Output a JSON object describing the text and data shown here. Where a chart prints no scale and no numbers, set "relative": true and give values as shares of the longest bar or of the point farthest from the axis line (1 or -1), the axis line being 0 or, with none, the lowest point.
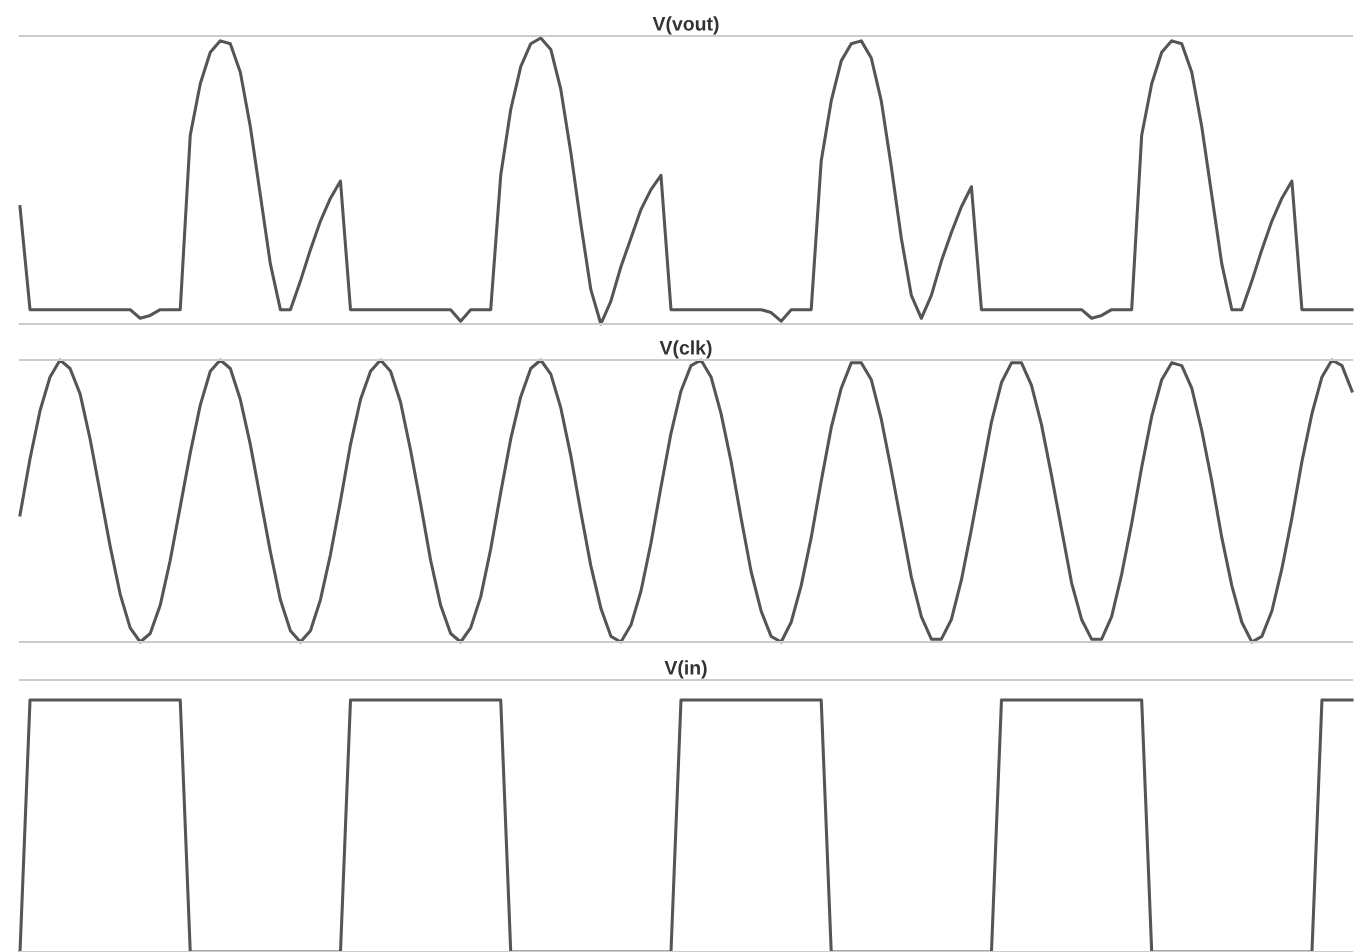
{
  "chart_data": [
    {
      "type": "line",
      "title": "V(vout)",
      "relative": true,
      "tick_labels": false,
      "categories": [
        null,
        null,
        null,
        null,
        null,
        null,
        null,
        null,
        null,
        null,
        null,
        null,
        null,
        null,
        null,
        null,
        null,
        null,
        null,
        null,
        null,
        null,
        null,
        null,
        null,
        null,
        null,
        null,
        null,
        null,
        null,
        null,
        null,
        null,
        null,
        null,
        null,
        null,
        null,
        null,
        null,
        null,
        null,
        null,
        null,
        null,
        null,
        null,
        null,
        null,
        null,
        null,
        null,
        null,
        null,
        null,
        null,
        null,
        null,
        null,
        null,
        null,
        null,
        null,
        null,
        null,
        null,
        null,
        null,
        null,
        null,
        null,
        null,
        null,
        null,
        null,
        null,
        null,
        null,
        null,
        null,
        null,
        null,
        null,
        null,
        null,
        null,
        null,
        null,
        null,
        null,
        null,
        null,
        null,
        null,
        null,
        null,
        null,
        null,
        null,
        null,
        null,
        null,
        null,
        null,
        null,
        null,
        null,
        null,
        null,
        null,
        null,
        null,
        null,
        null,
        null,
        null,
        null,
        null,
        null,
        null,
        null,
        null,
        null,
        null,
        null,
        null,
        null,
        null,
        null,
        null,
        null,
        null,
        null
      ],
      "series": [
        {
          "color": "#555555",
          "values": [
            0.41,
            0.05,
            0.05,
            0.05,
            0.05,
            0.05,
            0.05,
            0.05,
            0.05,
            0.05,
            0.05,
            0.05,
            0.02,
            0.03,
            0.05,
            0.05,
            0.05,
            0.66,
            0.84,
            0.95,
            0.99,
            0.98,
            0.88,
            0.69,
            0.45,
            0.21,
            0.05,
            0.05,
            0.15,
            0.26,
            0.36,
            0.44,
            0.5,
            0.05,
            0.05,
            0.05,
            0.05,
            0.05,
            0.05,
            0.05,
            0.05,
            0.05,
            0.05,
            0.05,
            0.01,
            0.05,
            0.05,
            0.05,
            0.52,
            0.75,
            0.9,
            0.98,
            1,
            0.96,
            0.82,
            0.6,
            0.35,
            0.12,
            0,
            0.08,
            0.2,
            0.3,
            0.4,
            0.47,
            0.52,
            0.05,
            0.05,
            0.05,
            0.05,
            0.05,
            0.05,
            0.05,
            0.05,
            0.05,
            0.05,
            0.04,
            0.01,
            0.05,
            0.05,
            0.05,
            0.57,
            0.78,
            0.92,
            0.98,
            0.99,
            0.93,
            0.78,
            0.55,
            0.3,
            0.1,
            0.02,
            0.1,
            0.22,
            0.32,
            0.41,
            0.48,
            0.05,
            0.05,
            0.05,
            0.05,
            0.05,
            0.05,
            0.05,
            0.05,
            0.05,
            0.05,
            0.05,
            0.02,
            0.03,
            0.05,
            0.05,
            0.05,
            0.66,
            0.84,
            0.95,
            0.99,
            0.98,
            0.88,
            0.69,
            0.45,
            0.21,
            0.05,
            0.05,
            0.15,
            0.26,
            0.36,
            0.44,
            0.5,
            0.05,
            0.05,
            0.05,
            0.05,
            0.05,
            0.05
          ]
        }
      ]
    },
    {
      "type": "line",
      "title": "V(clk)",
      "relative": true,
      "tick_labels": false,
      "categories": [
        null,
        null,
        null,
        null,
        null,
        null,
        null,
        null,
        null,
        null,
        null,
        null,
        null,
        null,
        null,
        null,
        null,
        null,
        null,
        null,
        null,
        null,
        null,
        null,
        null,
        null,
        null,
        null,
        null,
        null,
        null,
        null,
        null,
        null,
        null,
        null,
        null,
        null,
        null,
        null,
        null,
        null,
        null,
        null,
        null,
        null,
        null,
        null,
        null,
        null,
        null,
        null,
        null,
        null,
        null,
        null,
        null,
        null,
        null,
        null,
        null,
        null,
        null,
        null,
        null,
        null,
        null,
        null,
        null,
        null,
        null,
        null,
        null,
        null,
        null,
        null,
        null,
        null,
        null,
        null,
        null,
        null,
        null,
        null,
        null,
        null,
        null,
        null,
        null,
        null,
        null,
        null,
        null,
        null,
        null,
        null,
        null,
        null,
        null,
        null,
        null,
        null,
        null,
        null,
        null,
        null,
        null,
        null,
        null,
        null,
        null,
        null,
        null,
        null,
        null,
        null,
        null,
        null,
        null,
        null,
        null,
        null,
        null,
        null,
        null,
        null,
        null,
        null,
        null,
        null,
        null,
        null,
        null,
        null
      ],
      "series": [
        {
          "color": "#555555",
          "values": [
            0.45,
            0.65,
            0.82,
            0.94,
            1,
            0.97,
            0.88,
            0.72,
            0.53,
            0.34,
            0.17,
            0.05,
            0,
            0.03,
            0.13,
            0.29,
            0.48,
            0.67,
            0.84,
            0.96,
            1,
            0.97,
            0.86,
            0.7,
            0.51,
            0.32,
            0.15,
            0.04,
            0,
            0.04,
            0.15,
            0.31,
            0.5,
            0.7,
            0.86,
            0.96,
            1,
            0.96,
            0.85,
            0.68,
            0.49,
            0.29,
            0.13,
            0.03,
            0,
            0.05,
            0.16,
            0.33,
            0.53,
            0.72,
            0.87,
            0.97,
            1,
            0.95,
            0.83,
            0.66,
            0.46,
            0.27,
            0.12,
            0.02,
            0,
            0.06,
            0.18,
            0.35,
            0.55,
            0.74,
            0.89,
            0.98,
            1,
            0.94,
            0.81,
            0.64,
            0.44,
            0.25,
            0.11,
            0.02,
            0,
            0.07,
            0.2,
            0.37,
            0.57,
            0.76,
            0.9,
            0.99,
            0.99,
            0.93,
            0.79,
            0.61,
            0.42,
            0.23,
            0.09,
            0.01,
            0.01,
            0.08,
            0.22,
            0.4,
            0.59,
            0.78,
            0.92,
            0.99,
            0.99,
            0.91,
            0.77,
            0.59,
            0.4,
            0.21,
            0.08,
            0.01,
            0.01,
            0.09,
            0.24,
            0.42,
            0.62,
            0.8,
            0.93,
            0.99,
            0.98,
            0.9,
            0.75,
            0.57,
            0.37,
            0.2,
            0.07,
            0,
            0.02,
            0.11,
            0.26,
            0.44,
            0.64,
            0.81,
            0.94,
            1,
            0.98,
            0.89
          ]
        }
      ]
    },
    {
      "type": "line",
      "title": "V(in)",
      "relative": true,
      "tick_labels": false,
      "categories": [
        null,
        null,
        null,
        null,
        null,
        null,
        null,
        null,
        null,
        null,
        null,
        null,
        null,
        null,
        null,
        null,
        null,
        null,
        null,
        null,
        null,
        null,
        null,
        null,
        null,
        null,
        null,
        null,
        null,
        null,
        null,
        null,
        null,
        null,
        null,
        null,
        null,
        null,
        null,
        null,
        null,
        null,
        null,
        null,
        null,
        null,
        null,
        null,
        null,
        null,
        null,
        null,
        null,
        null,
        null,
        null,
        null,
        null,
        null,
        null,
        null,
        null,
        null,
        null,
        null,
        null,
        null,
        null,
        null,
        null,
        null,
        null,
        null,
        null,
        null,
        null,
        null,
        null,
        null,
        null,
        null,
        null,
        null,
        null,
        null,
        null,
        null,
        null,
        null,
        null,
        null,
        null,
        null,
        null,
        null,
        null,
        null,
        null,
        null,
        null,
        null,
        null,
        null,
        null,
        null,
        null,
        null,
        null,
        null,
        null,
        null,
        null,
        null,
        null,
        null,
        null,
        null,
        null,
        null,
        null,
        null,
        null,
        null,
        null,
        null,
        null,
        null,
        null,
        null,
        null,
        null,
        null,
        null,
        null
      ],
      "series": [
        {
          "color": "#555555",
          "values": [
            0,
            1,
            1,
            1,
            1,
            1,
            1,
            1,
            1,
            1,
            1,
            1,
            1,
            1,
            1,
            1,
            1,
            0,
            0,
            0,
            0,
            0,
            0,
            0,
            0,
            0,
            0,
            0,
            0,
            0,
            0,
            0,
            0,
            1,
            1,
            1,
            1,
            1,
            1,
            1,
            1,
            1,
            1,
            1,
            1,
            1,
            1,
            1,
            1,
            0,
            0,
            0,
            0,
            0,
            0,
            0,
            0,
            0,
            0,
            0,
            0,
            0,
            0,
            0,
            0,
            0,
            1,
            1,
            1,
            1,
            1,
            1,
            1,
            1,
            1,
            1,
            1,
            1,
            1,
            1,
            1,
            0,
            0,
            0,
            0,
            0,
            0,
            0,
            0,
            0,
            0,
            0,
            0,
            0,
            0,
            0,
            0,
            0,
            1,
            1,
            1,
            1,
            1,
            1,
            1,
            1,
            1,
            1,
            1,
            1,
            1,
            1,
            1,
            0,
            0,
            0,
            0,
            0,
            0,
            0,
            0,
            0,
            0,
            0,
            0,
            0,
            0,
            0,
            0,
            0,
            1,
            1,
            1,
            1
          ]
        }
      ]
    }
  ]
}
